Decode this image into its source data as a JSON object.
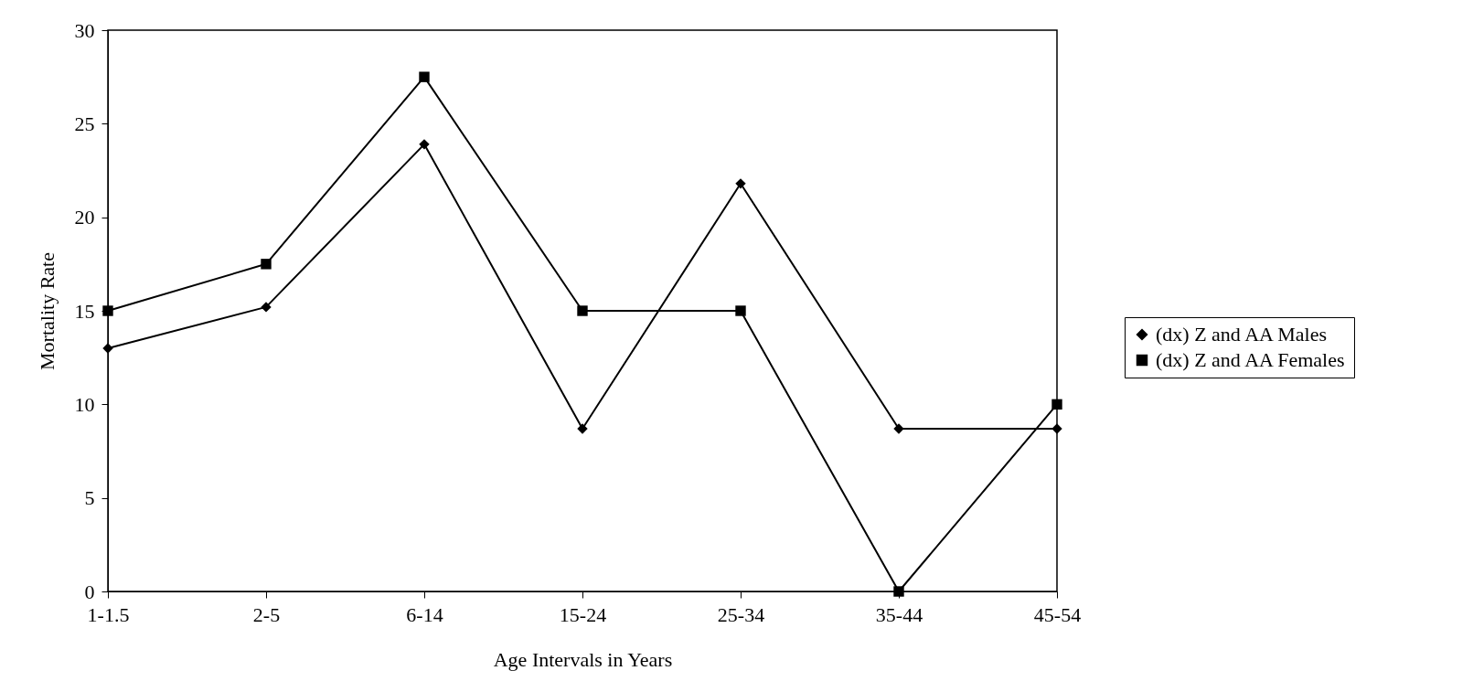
{
  "chart_data": {
    "type": "line",
    "xlabel": "Age Intervals in Years",
    "ylabel": "Mortality Rate",
    "categories": [
      "1-1.5",
      "2-5",
      "6-14",
      "15-24",
      "25-34",
      "35-44",
      "45-54"
    ],
    "series": [
      {
        "name": "(dx) Z and AA Males",
        "color": "#000000",
        "marker": "diamond",
        "values": [
          13.0,
          15.2,
          23.9,
          8.7,
          21.8,
          8.7,
          8.7
        ]
      },
      {
        "name": "(dx) Z and AA Females",
        "color": "#000000",
        "marker": "square",
        "values": [
          15.0,
          17.5,
          27.5,
          15.0,
          15.0,
          0,
          10.0
        ]
      }
    ],
    "ylim": [
      0,
      30
    ],
    "yticks": [
      0,
      5,
      10,
      15,
      20,
      25,
      30
    ],
    "grid": false,
    "legend": "right",
    "line_style": "solid"
  }
}
